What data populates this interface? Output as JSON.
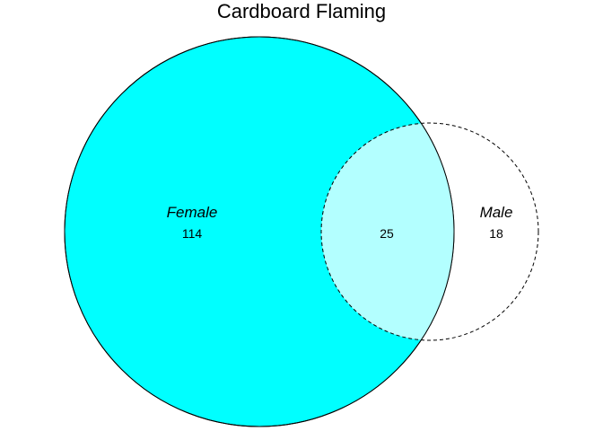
{
  "title": "Cardboard Flaming",
  "sets": [
    {
      "name": "Female",
      "only_count": "114",
      "fill": "#00FFFF",
      "border": "solid"
    },
    {
      "name": "Male",
      "only_count": "18",
      "fill": "none",
      "border": "dashed"
    }
  ],
  "intersection": {
    "count": "25",
    "fill": "#B3FFFF"
  }
}
